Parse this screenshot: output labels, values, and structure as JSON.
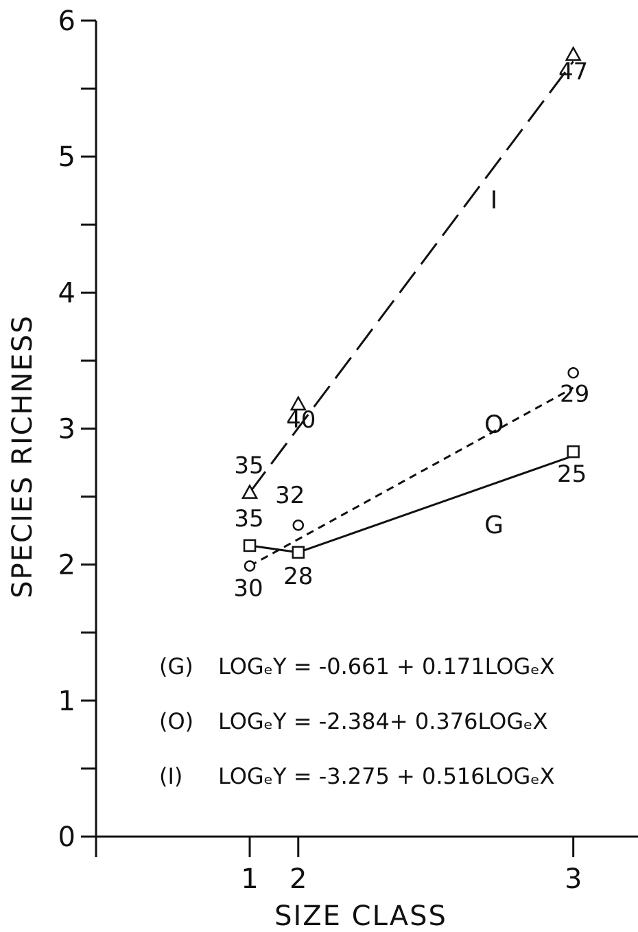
{
  "chart_data": {
    "type": "line",
    "xlabel": "SIZE CLASS",
    "ylabel": "SPECIES RICHNESS",
    "x_ticks": [
      "1",
      "2",
      "3"
    ],
    "y_ticks": [
      "0",
      "1",
      "2",
      "3",
      "4",
      "5",
      "6"
    ],
    "ylim": [
      0,
      6
    ],
    "xlim": [
      0.05,
      3.4
    ],
    "grid": false,
    "legend": "none",
    "series": [
      {
        "key": "I",
        "label": "I",
        "marker": "triangle",
        "line_style": "long-dash",
        "x": [
          1,
          1.3,
          3
        ],
        "y": [
          2.53,
          3.18,
          5.75
        ],
        "fit": [
          [
            1,
            2.53
          ],
          [
            3,
            5.7
          ]
        ],
        "point_labels": [
          "35",
          "40",
          "47"
        ],
        "label_pos": [
          2.51,
          4.62
        ]
      },
      {
        "key": "O",
        "label": "O",
        "marker": "circle",
        "line_style": "short-dash",
        "x": [
          1,
          1.3,
          3
        ],
        "y": [
          1.99,
          2.29,
          3.41
        ],
        "fit": [
          [
            1,
            1.99
          ],
          [
            3,
            3.3
          ]
        ],
        "point_labels": [
          "30",
          "32",
          "29"
        ],
        "label_pos": [
          2.51,
          2.97
        ]
      },
      {
        "key": "G",
        "label": "G",
        "marker": "square",
        "line_style": "solid",
        "x": [
          1,
          1.3,
          3
        ],
        "y": [
          2.14,
          2.09,
          2.83
        ],
        "fit": [
          [
            1,
            2.14
          ],
          [
            1.3,
            2.09
          ],
          [
            3,
            2.8
          ]
        ],
        "point_labels": [
          "35",
          "28",
          "25"
        ],
        "label_pos": [
          2.51,
          2.23
        ]
      }
    ],
    "equations": [
      {
        "series": "(G)",
        "text": "LOGₑY = -0.661 + 0.171LOGₑX"
      },
      {
        "series": "(O)",
        "text": "LOGₑY = -2.384+ 0.376LOGₑX"
      },
      {
        "series": "(I)",
        "text": "LOGₑY = -3.275 + 0.516LOGₑX"
      }
    ]
  }
}
